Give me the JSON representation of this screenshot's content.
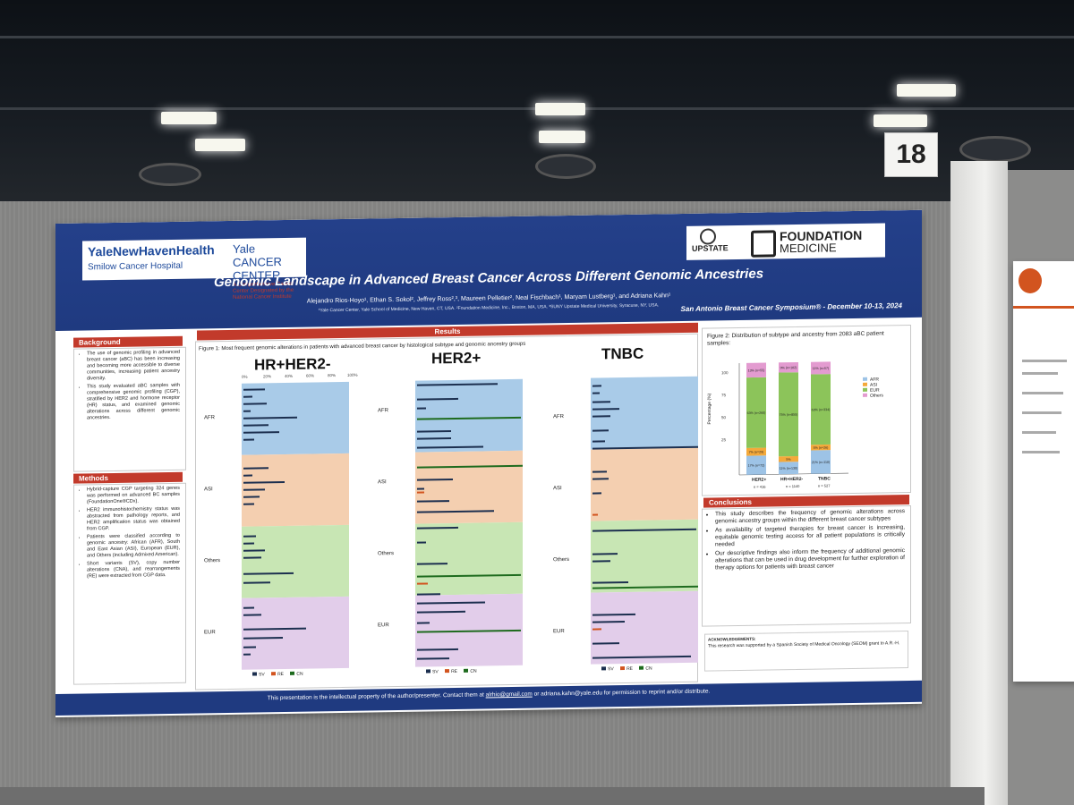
{
  "booth": {
    "number": "18"
  },
  "poster": {
    "logos": {
      "ynhh": "YaleNewHavenHealth",
      "smilow": "Smilow Cancer Hospital",
      "yale_cc": "Yale CANCER CENTER",
      "yale_cc_sub": "A Comprehensive Cancer Center Designated by the National Cancer Institute",
      "upstate": "UPSTATE",
      "foundation": "FOUNDATION",
      "medicine": "MEDICINE"
    },
    "title": "Genomic Landscape in Advanced Breast Cancer Across Different Genomic Ancestries",
    "authors": "Alejandro Rios-Hoyo¹, Ethan S. Sokol², Jeffrey Ross²,³, Maureen Pelletier², Neal Fischbach¹, Maryam Lustberg¹, and Adriana Kahn¹",
    "affiliations": "¹Yale Cancer Center, Yale School of Medicine, New Haven, CT, USA. ²Foundation Medicine, Inc., Boston, MA, USA. ³SUNY Upstate Medical University, Syracuse, NY, USA.",
    "conference": "San Antonio Breast Cancer Symposium® - December 10-13, 2024",
    "background": {
      "heading": "Background",
      "bullets": [
        "The use of genomic profiling in advanced breast cancer (aBC) has been increasing and becoming more accessible to diverse communities, increasing patient ancestry diversity.",
        "This study evaluated aBC samples with comprehensive genomic profiling (CGP), stratified by HER2 and hormone receptor (HR) status, and examined genomic alterations across different genomic ancestries."
      ]
    },
    "methods": {
      "heading": "Methods",
      "bullets": [
        "Hybrid-capture CGP targeting 324 genes was performed on advanced BC samples (FoundationOne®CDx).",
        "HER2 immunohistochemistry status was abstracted from pathology reports, and HER2 amplification status was obtained from CGP.",
        "Patients were classified according to genomic ancestry: African (AFR), South and East Asian (ASI), European (EUR), and Others (including Admixed American).",
        "Short variants (SV), copy number alterations (CNA), and rearrangements (RE) were extracted from CGP data."
      ]
    },
    "results": {
      "heading": "Results",
      "figure1_caption": "Figure 1: Most frequent genomic alterations in patients with advanced breast cancer by histological subtype and genomic ancestry groups",
      "panels": [
        "HR+HER2-",
        "HER2+",
        "TNBC"
      ],
      "ticks": [
        "0%",
        "20%",
        "40%",
        "60%",
        "80%",
        "100%"
      ],
      "ancestries": [
        "AFR",
        "ASI",
        "Others",
        "EUR"
      ],
      "legend": [
        "SV",
        "RE",
        "CN"
      ]
    },
    "figure2": {
      "caption": "Figure 2: Distribution of subtype and ancestry from 2083 aBC patient samples:",
      "ylabel": "Percentage (%)",
      "yticks": [
        "100",
        "75",
        "50",
        "25",
        "0"
      ],
      "categories": [
        "HER2+",
        "HR+HER2-",
        "TNBC"
      ],
      "counts": [
        "n = 416",
        "n = 1140",
        "n = 527"
      ],
      "legend": [
        "AFR",
        "ASI",
        "EUR",
        "Others"
      ],
      "colors": [
        "#9dc3e6",
        "#f4a93b",
        "#8cc45a",
        "#e39bd0"
      ]
    },
    "chart_data": {
      "type": "bar",
      "title": "Figure 2: Distribution of subtype and ancestry from 2083 aBC patient samples:",
      "xlabel": "",
      "ylabel": "Percentage (%)",
      "ylim": [
        0,
        100
      ],
      "categories": [
        "HER2+",
        "HR+HER2-",
        "TNBC"
      ],
      "series": [
        {
          "name": "AFR",
          "values": [
            17,
            11,
            21
          ],
          "labels": [
            "17% (n=72)",
            "11% (n=130)",
            "21% (n=110)"
          ]
        },
        {
          "name": "ASI",
          "values": [
            7,
            5,
            5
          ],
          "labels": [
            "7% (n=29)",
            "5%",
            "5% (n=26)"
          ]
        },
        {
          "name": "EUR",
          "values": [
            63,
            75,
            63
          ],
          "labels": [
            "63% (n=260)",
            "75% (n=855)",
            "63% (n=334)"
          ]
        },
        {
          "name": "Others",
          "values": [
            13,
            9,
            11
          ],
          "labels": [
            "13% (n=55)",
            "9% (n=102)",
            "11% (n=57)"
          ]
        }
      ]
    },
    "conclusions": {
      "heading": "Conclusions",
      "bullets": [
        "This study describes the frequency of genomic alterations across genomic ancestry groups within the different breast cancer subtypes",
        "As availability of targeted therapies for breast cancer is increasing, equitable genomic testing access for all patient populations is critically needed",
        "Our descriptive findings also inform the frequency of additional genomic alterations that can be used in drug development for further exploration of therapy options for patients with breast cancer"
      ]
    },
    "acknowledgements": {
      "heading": "ACKNOWLEDGEMENTS:",
      "text": "This research was supported by a Spanish Society of Medical Oncology (SEOM) grant to A.R.-H."
    },
    "footer": {
      "before": "This presentation is the intellectual property of the author/presenter. Contact them at ",
      "email1": "alrhio@gmail.com",
      "middle": " or adriana.kahn@yale.edu for permission to reprint and/or distribute."
    }
  }
}
